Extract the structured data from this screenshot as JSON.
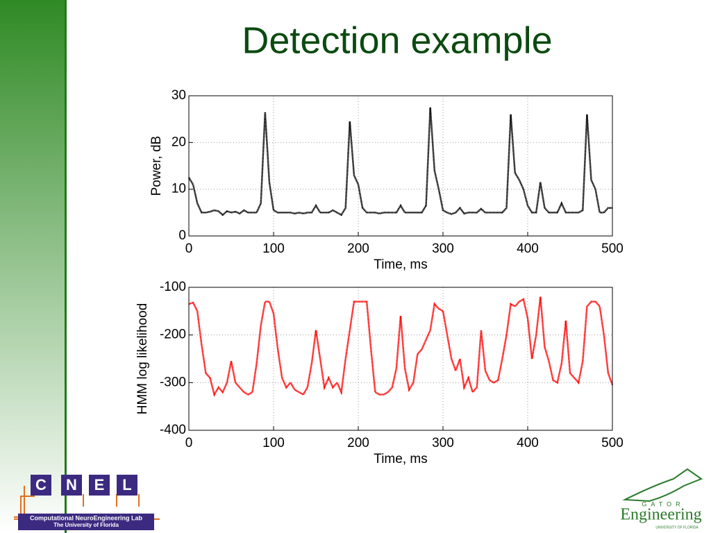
{
  "slide": {
    "title": "Detection example"
  },
  "chart_data": [
    {
      "type": "line",
      "xlabel": "Time, ms",
      "ylabel": "Power, dB",
      "xlim": [
        0,
        500
      ],
      "ylim": [
        0,
        30
      ],
      "xticks": [
        0,
        100,
        200,
        300,
        400,
        500
      ],
      "yticks": [
        0,
        10,
        20,
        30
      ],
      "grid": true,
      "x": [
        0,
        5,
        10,
        15,
        20,
        25,
        30,
        35,
        40,
        45,
        50,
        55,
        60,
        65,
        70,
        75,
        80,
        85,
        90,
        95,
        100,
        105,
        110,
        115,
        120,
        125,
        130,
        135,
        140,
        145,
        150,
        155,
        160,
        165,
        170,
        175,
        180,
        185,
        190,
        195,
        200,
        205,
        210,
        215,
        220,
        225,
        230,
        235,
        240,
        245,
        250,
        255,
        260,
        265,
        270,
        275,
        280,
        285,
        290,
        295,
        300,
        305,
        310,
        315,
        320,
        325,
        330,
        335,
        340,
        345,
        350,
        355,
        360,
        365,
        370,
        375,
        380,
        385,
        390,
        395,
        400,
        405,
        410,
        415,
        420,
        425,
        430,
        435,
        440,
        445,
        450,
        455,
        460,
        465,
        470,
        475,
        480,
        485,
        490,
        495,
        500
      ],
      "series": [
        {
          "color": "#000000",
          "values": [
            12.5,
            11,
            7,
            5,
            5,
            5.2,
            5.5,
            5.3,
            4.5,
            5.3,
            5,
            5.2,
            4.8,
            5.5,
            5,
            5,
            5,
            7,
            26.5,
            11.5,
            5.5,
            5,
            5,
            5,
            5,
            4.8,
            5,
            4.8,
            5,
            5,
            6.5,
            5,
            5,
            5,
            5.5,
            5,
            4.5,
            6,
            24.5,
            13,
            11,
            6,
            5,
            5,
            5,
            4.8,
            5,
            5,
            5,
            5,
            6.5,
            5,
            5,
            5,
            5,
            5,
            6.5,
            27.5,
            14,
            10,
            5.5,
            5,
            4.7,
            5,
            6,
            4.8,
            5,
            5,
            5,
            5.8,
            5,
            5,
            5,
            5,
            5,
            6,
            26,
            13.5,
            12,
            10,
            6.5,
            5,
            5,
            11.5,
            6,
            5,
            5,
            5,
            7,
            5,
            5,
            5,
            5,
            5.5,
            26,
            12,
            10,
            5,
            5,
            6,
            6
          ]
        }
      ]
    },
    {
      "type": "line",
      "xlabel": "Time, ms",
      "ylabel": "HMM log likelihood",
      "xlim": [
        0,
        500
      ],
      "ylim": [
        -400,
        -100
      ],
      "xticks": [
        0,
        100,
        200,
        300,
        400,
        500
      ],
      "yticks": [
        -400,
        -300,
        -200,
        -100
      ],
      "grid": true,
      "x": [
        0,
        5,
        10,
        15,
        20,
        25,
        30,
        35,
        40,
        45,
        50,
        55,
        60,
        65,
        70,
        75,
        80,
        85,
        90,
        95,
        100,
        105,
        110,
        115,
        120,
        125,
        130,
        135,
        140,
        145,
        150,
        155,
        160,
        165,
        170,
        175,
        180,
        185,
        190,
        195,
        200,
        205,
        210,
        215,
        220,
        225,
        230,
        235,
        240,
        245,
        250,
        255,
        260,
        265,
        270,
        275,
        280,
        285,
        290,
        295,
        300,
        305,
        310,
        315,
        320,
        325,
        330,
        335,
        340,
        345,
        350,
        355,
        360,
        365,
        370,
        375,
        380,
        385,
        390,
        395,
        400,
        405,
        410,
        415,
        420,
        425,
        430,
        435,
        440,
        445,
        450,
        455,
        460,
        465,
        470,
        475,
        480,
        485,
        490,
        495,
        500
      ],
      "series": [
        {
          "color": "#ff0000",
          "values": [
            -135,
            -132,
            -150,
            -220,
            -280,
            -290,
            -325,
            -310,
            -320,
            -300,
            -255,
            -300,
            -310,
            -320,
            -325,
            -320,
            -260,
            -180,
            -130,
            -130,
            -155,
            -230,
            -290,
            -310,
            -300,
            -315,
            -320,
            -325,
            -310,
            -260,
            -190,
            -250,
            -310,
            -290,
            -310,
            -300,
            -320,
            -250,
            -190,
            -130,
            -130,
            -130,
            -130,
            -230,
            -320,
            -325,
            -325,
            -320,
            -310,
            -270,
            -160,
            -270,
            -315,
            -300,
            -240,
            -230,
            -210,
            -190,
            -135,
            -145,
            -150,
            -200,
            -250,
            -275,
            -250,
            -310,
            -290,
            -320,
            -310,
            -190,
            -275,
            -295,
            -300,
            -295,
            -250,
            -200,
            -135,
            -140,
            -130,
            -125,
            -165,
            -250,
            -200,
            -120,
            -225,
            -255,
            -295,
            -300,
            -260,
            -170,
            -280,
            -290,
            -300,
            -255,
            -140,
            -130,
            -130,
            -140,
            -200,
            -280,
            -305
          ]
        }
      ]
    }
  ],
  "logos": {
    "cnel": {
      "letters": [
        "C",
        "N",
        "E",
        "L"
      ],
      "name": "Computational NeuroEngineering Lab",
      "university": "The University of Florida"
    },
    "gator": {
      "top": "GATOR",
      "word": "Engineering",
      "university": "UNIVERSITY OF FLORIDA"
    }
  }
}
